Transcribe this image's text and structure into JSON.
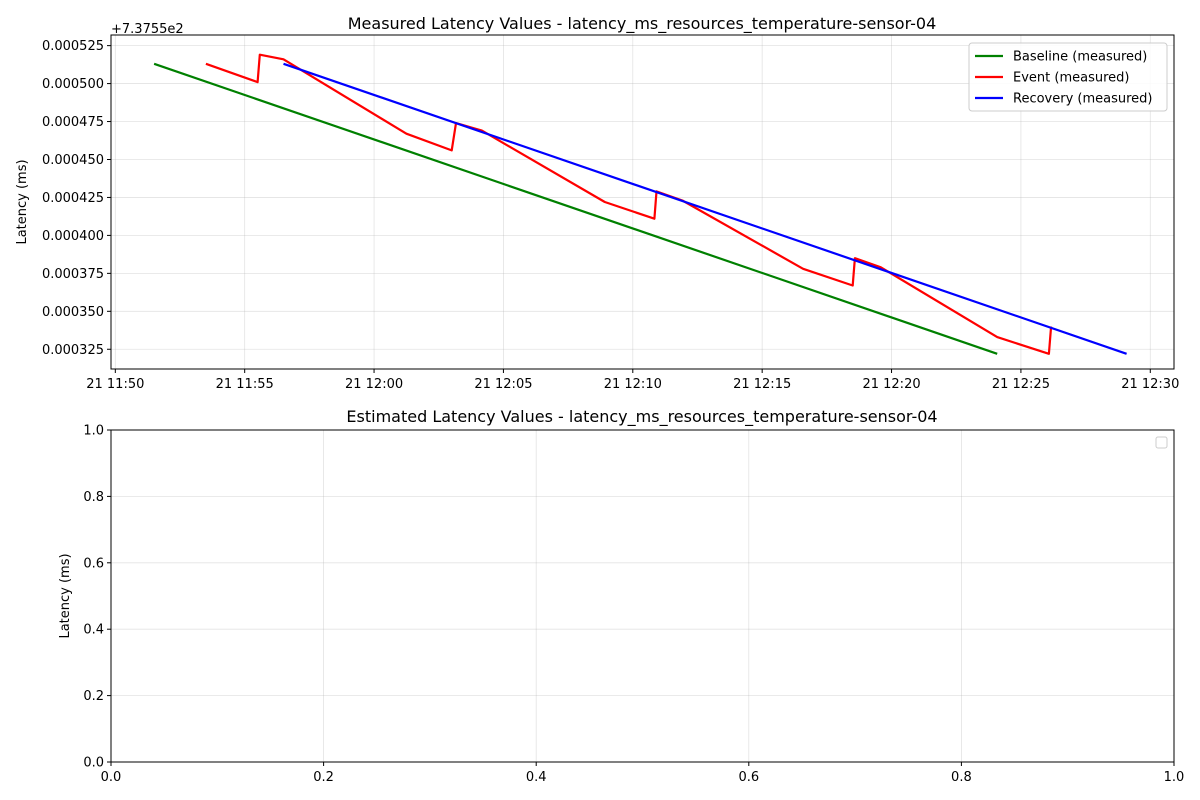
{
  "chart_data": [
    {
      "type": "line",
      "title": "Measured Latency Values - latency_ms_resources_temperature-sensor-04",
      "xlabel": "",
      "ylabel": "Latency (ms)",
      "offset_text": "+7.3755e2",
      "x_ticks": [
        "21 11:50",
        "21 11:55",
        "21 12:00",
        "21 12:05",
        "21 12:10",
        "21 12:15",
        "21 12:20",
        "21 12:25",
        "21 12:30"
      ],
      "y_ticks": [
        "0.000325",
        "0.000350",
        "0.000375",
        "0.000400",
        "0.000425",
        "0.000450",
        "0.000475",
        "0.000500",
        "0.000525"
      ],
      "y_offset_value": 737.55,
      "xlim": [
        "11:49:50",
        "12:30:55"
      ],
      "ylim": [
        0.000312,
        0.000532
      ],
      "grid": true,
      "legend_position": "top-right",
      "series": [
        {
          "name": "Baseline (measured)",
          "color": "#008000",
          "points": [
            [
              "11:51:30",
              0.000513
            ],
            [
              "12:24:05",
              0.000322
            ]
          ]
        },
        {
          "name": "Event (measured)",
          "color": "#ff0000",
          "points": [
            [
              "11:53:30",
              0.000513
            ],
            [
              "11:55:30",
              0.000501
            ],
            [
              "11:55:35",
              0.000519
            ],
            [
              "11:56:30",
              0.000516
            ],
            [
              "12:01:15",
              0.000467
            ],
            [
              "12:03:00",
              0.000456
            ],
            [
              "12:03:10",
              0.000474
            ],
            [
              "12:04:10",
              0.000469
            ],
            [
              "12:08:55",
              0.000422
            ],
            [
              "12:10:50",
              0.000411
            ],
            [
              "12:10:55",
              0.000429
            ],
            [
              "12:11:55",
              0.000423
            ],
            [
              "12:16:35",
              0.000378
            ],
            [
              "12:18:30",
              0.000367
            ],
            [
              "12:18:35",
              0.000385
            ],
            [
              "12:19:35",
              0.000379
            ],
            [
              "12:24:05",
              0.000333
            ],
            [
              "12:26:05",
              0.000322
            ],
            [
              "12:26:10",
              0.00034
            ]
          ]
        },
        {
          "name": "Recovery (measured)",
          "color": "#0000ff",
          "points": [
            [
              "11:56:30",
              0.000513
            ],
            [
              "12:29:05",
              0.000322
            ]
          ]
        }
      ]
    },
    {
      "type": "line",
      "title": "Estimated Latency Values - latency_ms_resources_temperature-sensor-04",
      "xlabel": "",
      "ylabel": "Latency (ms)",
      "xlim": [
        0,
        1
      ],
      "ylim": [
        0,
        1
      ],
      "x_ticks": [
        "0.0",
        "0.2",
        "0.4",
        "0.6",
        "0.8",
        "1.0"
      ],
      "y_ticks": [
        "0.0",
        "0.2",
        "0.4",
        "0.6",
        "0.8",
        "1.0"
      ],
      "grid": true,
      "legend_position": "top-right",
      "series": []
    }
  ]
}
